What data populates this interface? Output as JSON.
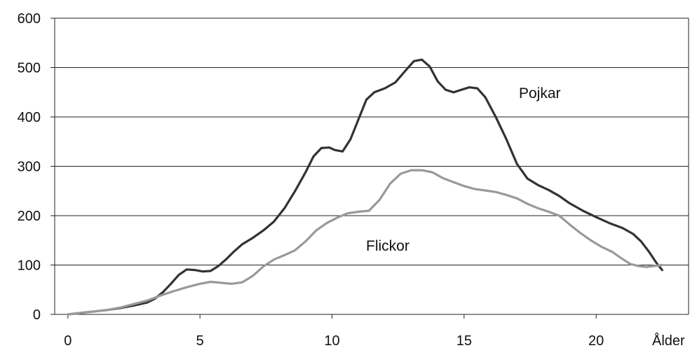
{
  "chart_data": {
    "type": "line",
    "title": "",
    "xlabel": "Ålder",
    "ylabel": "",
    "xlim": [
      -0.5,
      23.5
    ],
    "ylim": [
      0,
      600
    ],
    "x_ticks": [
      "0",
      "5",
      "10",
      "15",
      "20"
    ],
    "y_ticks": [
      "0",
      "100",
      "200",
      "300",
      "400",
      "500",
      "600"
    ],
    "grid": "horizontal",
    "legend": "inline labels",
    "series": [
      {
        "name": "Pojkar",
        "color": "#333333",
        "points": [
          [
            0,
            0
          ],
          [
            0.5,
            3
          ],
          [
            1,
            6
          ],
          [
            1.5,
            9
          ],
          [
            2,
            13
          ],
          [
            2.5,
            18
          ],
          [
            3,
            24
          ],
          [
            3.3,
            32
          ],
          [
            3.6,
            45
          ],
          [
            3.9,
            62
          ],
          [
            4.2,
            80
          ],
          [
            4.5,
            91
          ],
          [
            4.8,
            90
          ],
          [
            5.1,
            87
          ],
          [
            5.4,
            88
          ],
          [
            5.7,
            98
          ],
          [
            6,
            112
          ],
          [
            6.3,
            128
          ],
          [
            6.6,
            142
          ],
          [
            7,
            155
          ],
          [
            7.4,
            170
          ],
          [
            7.8,
            188
          ],
          [
            8.2,
            215
          ],
          [
            8.6,
            250
          ],
          [
            9,
            288
          ],
          [
            9.3,
            320
          ],
          [
            9.6,
            337
          ],
          [
            9.9,
            338
          ],
          [
            10.1,
            333
          ],
          [
            10.4,
            330
          ],
          [
            10.7,
            355
          ],
          [
            11,
            395
          ],
          [
            11.3,
            435
          ],
          [
            11.6,
            450
          ],
          [
            12,
            458
          ],
          [
            12.4,
            470
          ],
          [
            12.8,
            495
          ],
          [
            13.1,
            513
          ],
          [
            13.4,
            516
          ],
          [
            13.7,
            502
          ],
          [
            14,
            472
          ],
          [
            14.3,
            455
          ],
          [
            14.6,
            450
          ],
          [
            14.9,
            455
          ],
          [
            15.2,
            460
          ],
          [
            15.5,
            458
          ],
          [
            15.8,
            440
          ],
          [
            16.2,
            400
          ],
          [
            16.6,
            355
          ],
          [
            17,
            305
          ],
          [
            17.4,
            275
          ],
          [
            17.8,
            262
          ],
          [
            18.2,
            252
          ],
          [
            18.6,
            240
          ],
          [
            19,
            225
          ],
          [
            19.5,
            210
          ],
          [
            20,
            197
          ],
          [
            20.5,
            185
          ],
          [
            21,
            175
          ],
          [
            21.4,
            163
          ],
          [
            21.7,
            148
          ],
          [
            22,
            127
          ],
          [
            22.3,
            103
          ],
          [
            22.5,
            90
          ]
        ]
      },
      {
        "name": "Flickor",
        "color": "#999999",
        "points": [
          [
            0,
            0
          ],
          [
            0.5,
            3
          ],
          [
            1,
            6
          ],
          [
            1.5,
            9
          ],
          [
            2,
            14
          ],
          [
            2.5,
            21
          ],
          [
            3,
            28
          ],
          [
            3.5,
            38
          ],
          [
            4,
            47
          ],
          [
            4.5,
            55
          ],
          [
            5,
            62
          ],
          [
            5.4,
            66
          ],
          [
            5.8,
            64
          ],
          [
            6.2,
            62
          ],
          [
            6.6,
            65
          ],
          [
            7,
            78
          ],
          [
            7.4,
            97
          ],
          [
            7.8,
            111
          ],
          [
            8.2,
            120
          ],
          [
            8.6,
            130
          ],
          [
            9,
            148
          ],
          [
            9.4,
            170
          ],
          [
            9.8,
            185
          ],
          [
            10.2,
            196
          ],
          [
            10.6,
            205
          ],
          [
            11,
            208
          ],
          [
            11.4,
            210
          ],
          [
            11.8,
            232
          ],
          [
            12.2,
            265
          ],
          [
            12.6,
            285
          ],
          [
            13,
            292
          ],
          [
            13.4,
            292
          ],
          [
            13.8,
            288
          ],
          [
            14.2,
            276
          ],
          [
            14.6,
            268
          ],
          [
            15,
            260
          ],
          [
            15.4,
            254
          ],
          [
            15.8,
            251
          ],
          [
            16.2,
            248
          ],
          [
            16.6,
            242
          ],
          [
            17,
            235
          ],
          [
            17.4,
            224
          ],
          [
            17.8,
            215
          ],
          [
            18.2,
            208
          ],
          [
            18.6,
            200
          ],
          [
            19,
            182
          ],
          [
            19.4,
            165
          ],
          [
            19.8,
            150
          ],
          [
            20.2,
            137
          ],
          [
            20.6,
            127
          ],
          [
            21,
            112
          ],
          [
            21.3,
            102
          ],
          [
            21.6,
            98
          ],
          [
            21.9,
            96
          ],
          [
            22.2,
            98
          ],
          [
            22.5,
            100
          ]
        ]
      }
    ],
    "labels": {
      "pojkar": "Pojkar",
      "flickor": "Flickor"
    }
  }
}
